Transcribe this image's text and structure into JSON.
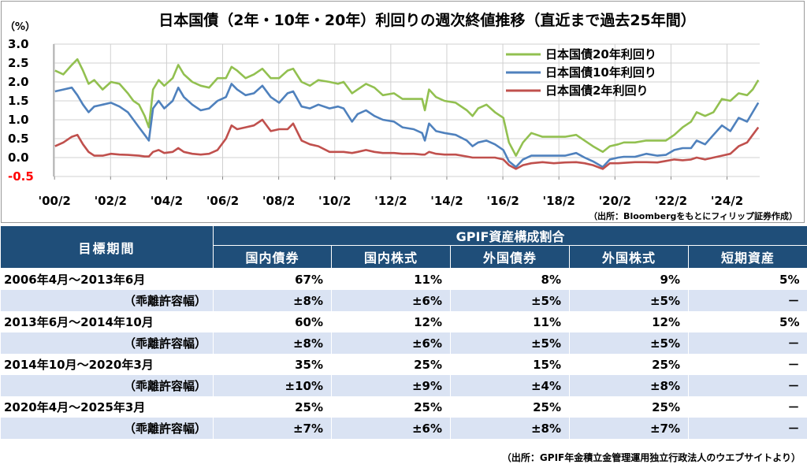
{
  "chart_data": {
    "type": "line",
    "title": "日本国債（2年・10年・20年）利回りの週次終値推移（直近まで過去25年間）",
    "ylabel": "（%）",
    "ylim": [
      -0.5,
      3.0
    ],
    "yticks": [
      "3.0",
      "2.5",
      "2.0",
      "1.5",
      "1.0",
      "0.5",
      "0.0",
      "-0.5"
    ],
    "xlim": [
      2000.05,
      2025.25
    ],
    "xticks": [
      "'00/2",
      "'02/2",
      "'04/2",
      "'06/2",
      "'08/2",
      "'10/2",
      "'12/2",
      "'14/2",
      "'16/2",
      "'18/2",
      "'20/2",
      "'22/2",
      "'24/2"
    ],
    "source": "（出所：Bloombergをもとにフィリップ証券作成）",
    "legend_position": "top-right",
    "series": [
      {
        "name": "日本国債20年利回り",
        "color": "#92c050",
        "points": [
          [
            2000.1,
            2.3
          ],
          [
            2000.4,
            2.2
          ],
          [
            2000.7,
            2.45
          ],
          [
            2000.9,
            2.6
          ],
          [
            2001.1,
            2.3
          ],
          [
            2001.3,
            1.95
          ],
          [
            2001.5,
            2.05
          ],
          [
            2001.8,
            1.8
          ],
          [
            2002.1,
            2.0
          ],
          [
            2002.4,
            1.95
          ],
          [
            2002.7,
            1.7
          ],
          [
            2002.9,
            1.5
          ],
          [
            2003.1,
            1.4
          ],
          [
            2003.3,
            1.1
          ],
          [
            2003.45,
            0.8
          ],
          [
            2003.6,
            1.8
          ],
          [
            2003.8,
            2.05
          ],
          [
            2004.0,
            1.9
          ],
          [
            2004.3,
            2.1
          ],
          [
            2004.5,
            2.45
          ],
          [
            2004.7,
            2.2
          ],
          [
            2005.0,
            2.0
          ],
          [
            2005.3,
            1.9
          ],
          [
            2005.6,
            1.85
          ],
          [
            2005.9,
            2.1
          ],
          [
            2006.2,
            2.1
          ],
          [
            2006.4,
            2.4
          ],
          [
            2006.6,
            2.3
          ],
          [
            2006.9,
            2.1
          ],
          [
            2007.2,
            2.2
          ],
          [
            2007.5,
            2.35
          ],
          [
            2007.8,
            2.1
          ],
          [
            2008.1,
            2.1
          ],
          [
            2008.4,
            2.3
          ],
          [
            2008.6,
            2.35
          ],
          [
            2008.9,
            2.0
          ],
          [
            2009.2,
            1.9
          ],
          [
            2009.5,
            2.05
          ],
          [
            2009.9,
            2.0
          ],
          [
            2010.2,
            1.95
          ],
          [
            2010.4,
            2.0
          ],
          [
            2010.7,
            1.7
          ],
          [
            2010.9,
            1.8
          ],
          [
            2011.2,
            1.95
          ],
          [
            2011.5,
            1.85
          ],
          [
            2011.8,
            1.65
          ],
          [
            2012.2,
            1.7
          ],
          [
            2012.5,
            1.55
          ],
          [
            2012.9,
            1.55
          ],
          [
            2013.2,
            1.55
          ],
          [
            2013.3,
            1.25
          ],
          [
            2013.45,
            1.8
          ],
          [
            2013.7,
            1.6
          ],
          [
            2014.0,
            1.5
          ],
          [
            2014.4,
            1.45
          ],
          [
            2014.8,
            1.25
          ],
          [
            2015.0,
            1.1
          ],
          [
            2015.2,
            1.3
          ],
          [
            2015.5,
            1.4
          ],
          [
            2015.8,
            1.2
          ],
          [
            2016.1,
            1.05
          ],
          [
            2016.3,
            0.4
          ],
          [
            2016.55,
            0.05
          ],
          [
            2016.8,
            0.4
          ],
          [
            2017.1,
            0.65
          ],
          [
            2017.5,
            0.55
          ],
          [
            2017.9,
            0.55
          ],
          [
            2018.3,
            0.55
          ],
          [
            2018.7,
            0.6
          ],
          [
            2019.0,
            0.45
          ],
          [
            2019.3,
            0.3
          ],
          [
            2019.65,
            0.15
          ],
          [
            2019.9,
            0.3
          ],
          [
            2020.2,
            0.35
          ],
          [
            2020.4,
            0.4
          ],
          [
            2020.8,
            0.4
          ],
          [
            2021.2,
            0.45
          ],
          [
            2021.6,
            0.45
          ],
          [
            2021.9,
            0.45
          ],
          [
            2022.2,
            0.6
          ],
          [
            2022.5,
            0.8
          ],
          [
            2022.8,
            0.95
          ],
          [
            2023.0,
            1.2
          ],
          [
            2023.3,
            1.1
          ],
          [
            2023.6,
            1.2
          ],
          [
            2023.9,
            1.55
          ],
          [
            2024.2,
            1.5
          ],
          [
            2024.5,
            1.7
          ],
          [
            2024.8,
            1.65
          ],
          [
            2025.0,
            1.8
          ],
          [
            2025.2,
            2.05
          ]
        ]
      },
      {
        "name": "日本国債10年利回り",
        "color": "#4f81bd",
        "points": [
          [
            2000.1,
            1.75
          ],
          [
            2000.4,
            1.8
          ],
          [
            2000.7,
            1.85
          ],
          [
            2000.9,
            1.65
          ],
          [
            2001.1,
            1.4
          ],
          [
            2001.3,
            1.2
          ],
          [
            2001.5,
            1.35
          ],
          [
            2001.8,
            1.4
          ],
          [
            2002.1,
            1.45
          ],
          [
            2002.4,
            1.35
          ],
          [
            2002.7,
            1.2
          ],
          [
            2002.9,
            1.0
          ],
          [
            2003.1,
            0.8
          ],
          [
            2003.3,
            0.6
          ],
          [
            2003.45,
            0.45
          ],
          [
            2003.6,
            1.3
          ],
          [
            2003.8,
            1.5
          ],
          [
            2004.0,
            1.3
          ],
          [
            2004.3,
            1.5
          ],
          [
            2004.5,
            1.85
          ],
          [
            2004.7,
            1.6
          ],
          [
            2005.0,
            1.4
          ],
          [
            2005.3,
            1.25
          ],
          [
            2005.6,
            1.3
          ],
          [
            2005.9,
            1.5
          ],
          [
            2006.2,
            1.6
          ],
          [
            2006.4,
            1.95
          ],
          [
            2006.6,
            1.8
          ],
          [
            2006.9,
            1.65
          ],
          [
            2007.2,
            1.7
          ],
          [
            2007.5,
            1.9
          ],
          [
            2007.8,
            1.6
          ],
          [
            2008.1,
            1.45
          ],
          [
            2008.4,
            1.7
          ],
          [
            2008.6,
            1.75
          ],
          [
            2008.9,
            1.35
          ],
          [
            2009.2,
            1.3
          ],
          [
            2009.5,
            1.4
          ],
          [
            2009.9,
            1.3
          ],
          [
            2010.2,
            1.35
          ],
          [
            2010.4,
            1.3
          ],
          [
            2010.7,
            0.95
          ],
          [
            2010.9,
            1.15
          ],
          [
            2011.2,
            1.25
          ],
          [
            2011.5,
            1.1
          ],
          [
            2011.8,
            1.0
          ],
          [
            2012.2,
            0.95
          ],
          [
            2012.5,
            0.8
          ],
          [
            2012.9,
            0.75
          ],
          [
            2013.2,
            0.65
          ],
          [
            2013.3,
            0.45
          ],
          [
            2013.45,
            0.9
          ],
          [
            2013.7,
            0.7
          ],
          [
            2014.0,
            0.65
          ],
          [
            2014.4,
            0.6
          ],
          [
            2014.8,
            0.45
          ],
          [
            2015.0,
            0.3
          ],
          [
            2015.2,
            0.4
          ],
          [
            2015.5,
            0.45
          ],
          [
            2015.8,
            0.35
          ],
          [
            2016.1,
            0.2
          ],
          [
            2016.3,
            -0.1
          ],
          [
            2016.55,
            -0.25
          ],
          [
            2016.8,
            -0.05
          ],
          [
            2017.1,
            0.05
          ],
          [
            2017.5,
            0.05
          ],
          [
            2017.9,
            0.05
          ],
          [
            2018.3,
            0.05
          ],
          [
            2018.7,
            0.12
          ],
          [
            2019.0,
            0.0
          ],
          [
            2019.3,
            -0.1
          ],
          [
            2019.65,
            -0.25
          ],
          [
            2019.9,
            -0.05
          ],
          [
            2020.2,
            0.0
          ],
          [
            2020.4,
            0.02
          ],
          [
            2020.8,
            0.02
          ],
          [
            2021.2,
            0.1
          ],
          [
            2021.6,
            0.05
          ],
          [
            2021.9,
            0.07
          ],
          [
            2022.2,
            0.2
          ],
          [
            2022.5,
            0.25
          ],
          [
            2022.8,
            0.25
          ],
          [
            2023.0,
            0.45
          ],
          [
            2023.3,
            0.35
          ],
          [
            2023.6,
            0.6
          ],
          [
            2023.9,
            0.85
          ],
          [
            2024.2,
            0.7
          ],
          [
            2024.5,
            1.05
          ],
          [
            2024.8,
            0.95
          ],
          [
            2025.0,
            1.2
          ],
          [
            2025.2,
            1.45
          ]
        ]
      },
      {
        "name": "日本国債2年利回り",
        "color": "#c0504d",
        "points": [
          [
            2000.1,
            0.3
          ],
          [
            2000.4,
            0.4
          ],
          [
            2000.7,
            0.55
          ],
          [
            2000.9,
            0.6
          ],
          [
            2001.1,
            0.35
          ],
          [
            2001.3,
            0.15
          ],
          [
            2001.5,
            0.05
          ],
          [
            2001.8,
            0.05
          ],
          [
            2002.1,
            0.1
          ],
          [
            2002.4,
            0.08
          ],
          [
            2002.7,
            0.07
          ],
          [
            2002.9,
            0.06
          ],
          [
            2003.1,
            0.05
          ],
          [
            2003.3,
            0.03
          ],
          [
            2003.45,
            0.03
          ],
          [
            2003.6,
            0.15
          ],
          [
            2003.8,
            0.2
          ],
          [
            2004.0,
            0.12
          ],
          [
            2004.3,
            0.15
          ],
          [
            2004.5,
            0.25
          ],
          [
            2004.7,
            0.15
          ],
          [
            2005.0,
            0.1
          ],
          [
            2005.3,
            0.08
          ],
          [
            2005.6,
            0.1
          ],
          [
            2005.9,
            0.2
          ],
          [
            2006.2,
            0.5
          ],
          [
            2006.4,
            0.85
          ],
          [
            2006.6,
            0.75
          ],
          [
            2006.9,
            0.8
          ],
          [
            2007.2,
            0.85
          ],
          [
            2007.5,
            1.0
          ],
          [
            2007.8,
            0.7
          ],
          [
            2008.1,
            0.75
          ],
          [
            2008.4,
            0.75
          ],
          [
            2008.6,
            0.9
          ],
          [
            2008.9,
            0.45
          ],
          [
            2009.2,
            0.35
          ],
          [
            2009.5,
            0.3
          ],
          [
            2009.9,
            0.15
          ],
          [
            2010.2,
            0.15
          ],
          [
            2010.4,
            0.15
          ],
          [
            2010.7,
            0.12
          ],
          [
            2010.9,
            0.15
          ],
          [
            2011.2,
            0.2
          ],
          [
            2011.5,
            0.15
          ],
          [
            2011.8,
            0.12
          ],
          [
            2012.2,
            0.12
          ],
          [
            2012.5,
            0.1
          ],
          [
            2012.9,
            0.1
          ],
          [
            2013.2,
            0.08
          ],
          [
            2013.3,
            0.08
          ],
          [
            2013.45,
            0.15
          ],
          [
            2013.7,
            0.1
          ],
          [
            2014.0,
            0.08
          ],
          [
            2014.4,
            0.08
          ],
          [
            2014.8,
            0.03
          ],
          [
            2015.0,
            0.0
          ],
          [
            2015.2,
            0.0
          ],
          [
            2015.5,
            0.0
          ],
          [
            2015.8,
            0.0
          ],
          [
            2016.1,
            -0.05
          ],
          [
            2016.3,
            -0.2
          ],
          [
            2016.55,
            -0.3
          ],
          [
            2016.8,
            -0.2
          ],
          [
            2017.1,
            -0.15
          ],
          [
            2017.5,
            -0.12
          ],
          [
            2017.9,
            -0.15
          ],
          [
            2018.3,
            -0.13
          ],
          [
            2018.7,
            -0.12
          ],
          [
            2019.0,
            -0.15
          ],
          [
            2019.3,
            -0.2
          ],
          [
            2019.65,
            -0.3
          ],
          [
            2019.9,
            -0.15
          ],
          [
            2020.2,
            -0.15
          ],
          [
            2020.4,
            -0.14
          ],
          [
            2020.8,
            -0.12
          ],
          [
            2021.2,
            -0.12
          ],
          [
            2021.6,
            -0.13
          ],
          [
            2021.9,
            -0.09
          ],
          [
            2022.2,
            -0.05
          ],
          [
            2022.5,
            -0.07
          ],
          [
            2022.8,
            -0.05
          ],
          [
            2023.0,
            0.0
          ],
          [
            2023.3,
            -0.05
          ],
          [
            2023.6,
            0.0
          ],
          [
            2023.9,
            0.05
          ],
          [
            2024.2,
            0.1
          ],
          [
            2024.5,
            0.3
          ],
          [
            2024.8,
            0.4
          ],
          [
            2025.0,
            0.6
          ],
          [
            2025.2,
            0.8
          ]
        ]
      }
    ]
  },
  "table": {
    "period_header": "目標期間",
    "group_header": "GPIF資産構成割合",
    "columns": [
      "国内債券",
      "国内株式",
      "外国債券",
      "外国株式",
      "短期資産"
    ],
    "rows": [
      {
        "label": "2006年4月～2013年6月",
        "values": [
          "67%",
          "11%",
          "8%",
          "9%",
          "5%"
        ],
        "band": false
      },
      {
        "label": "（乖離許容幅）",
        "values": [
          "±8%",
          "±6%",
          "±5%",
          "±5%",
          "－"
        ],
        "band": true
      },
      {
        "label": "2013年6月～2014年10月",
        "values": [
          "60%",
          "12%",
          "11%",
          "12%",
          "5%"
        ],
        "band": false
      },
      {
        "label": "（乖離許容幅）",
        "values": [
          "±8%",
          "±6%",
          "±5%",
          "±5%",
          "－"
        ],
        "band": true
      },
      {
        "label": "2014年10月～2020年3月",
        "values": [
          "35%",
          "25%",
          "15%",
          "25%",
          "－"
        ],
        "band": false
      },
      {
        "label": "（乖離許容幅）",
        "values": [
          "±10%",
          "±9%",
          "±4%",
          "±8%",
          "－"
        ],
        "band": true
      },
      {
        "label": "2020年4月～2025年3月",
        "values": [
          "25%",
          "25%",
          "25%",
          "25%",
          "－"
        ],
        "band": false
      },
      {
        "label": "（乖離許容幅）",
        "values": [
          "±7%",
          "±6%",
          "±8%",
          "±7%",
          "－"
        ],
        "band": true
      }
    ],
    "source": "（出所：GPIF年金積立金管理運用独立行政法人のウエブサイトより）"
  }
}
